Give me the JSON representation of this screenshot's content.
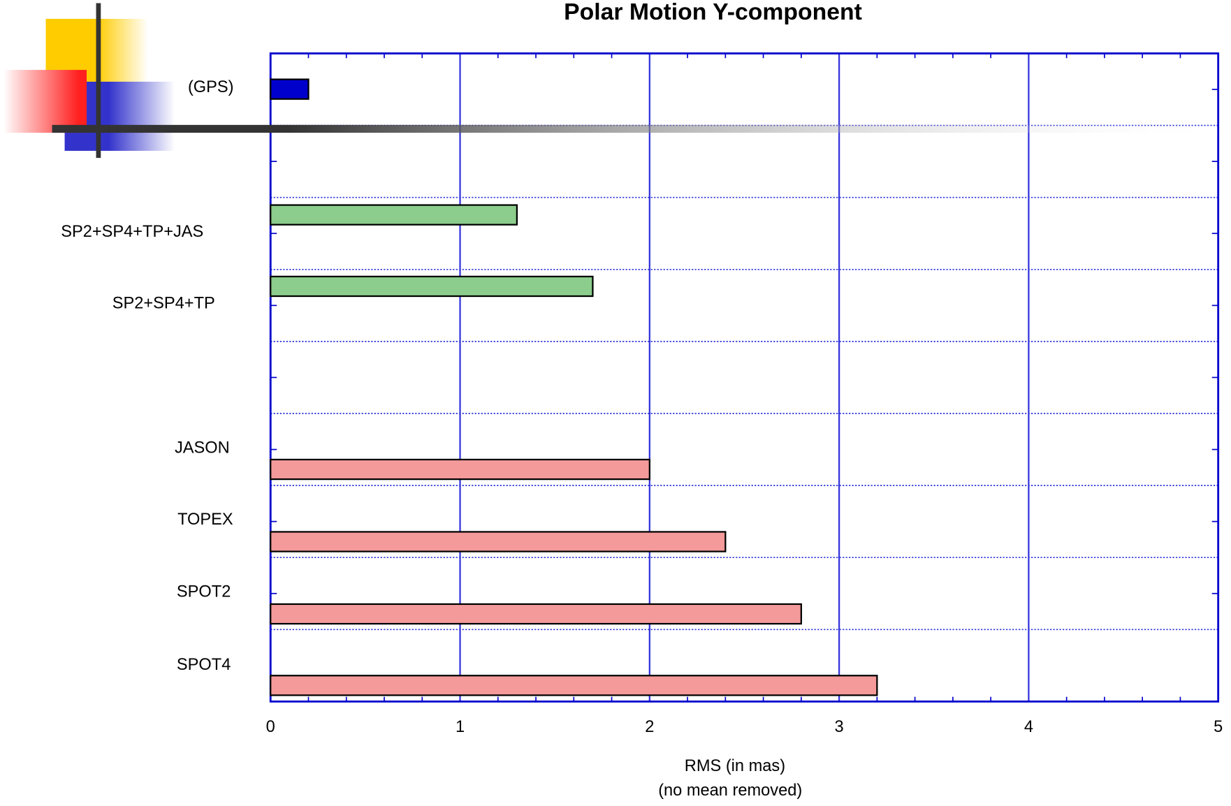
{
  "chart_data": {
    "type": "hbar",
    "title": "Polar Motion Y-component",
    "xlabel": [
      "RMS (in mas)",
      "(no mean removed)"
    ],
    "categories": [
      "(GPS)",
      "SP2+SP4+TP+JAS",
      "SP2+SP4+TP",
      "JASON",
      "TOPEX",
      "SPOT2",
      "SPOT4"
    ],
    "values": [
      0.2,
      1.3,
      1.7,
      2.0,
      2.4,
      2.8,
      3.2
    ],
    "colors": [
      "#0000cc",
      "#8ccc8c",
      "#8ccc8c",
      "#f49a9a",
      "#f49a9a",
      "#f49a9a",
      "#f49a9a"
    ],
    "xlim": [
      0,
      5
    ],
    "xticks": [
      0,
      1,
      2,
      3,
      4,
      5
    ],
    "grid": true
  }
}
